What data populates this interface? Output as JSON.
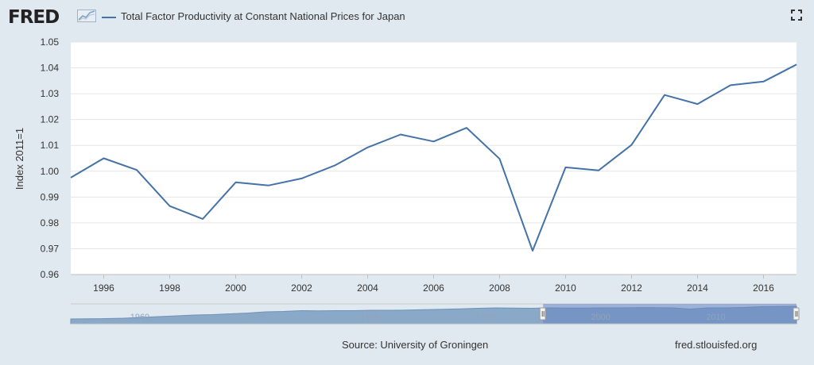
{
  "header": {
    "logo_text": "FRED",
    "legend_label": "Total Factor Productivity at Constant National Prices for Japan"
  },
  "colors": {
    "series": "#4572a7",
    "background": "#e1e9f0",
    "plot": "#ffffff"
  },
  "icons": {
    "fullscreen": "fullscreen-icon",
    "logo": "fred-graph-icon"
  },
  "chart_data": {
    "type": "line",
    "title": "Total Factor Productivity at Constant National Prices for Japan",
    "xlabel": "",
    "ylabel": "Index 2011=1",
    "xlim": [
      1995,
      2017
    ],
    "ylim": [
      0.96,
      1.05
    ],
    "yticks": [
      "0.96",
      "0.97",
      "0.98",
      "0.99",
      "1.00",
      "1.01",
      "1.02",
      "1.03",
      "1.04",
      "1.05"
    ],
    "xticks": [
      "1996",
      "1998",
      "2000",
      "2002",
      "2004",
      "2006",
      "2008",
      "2010",
      "2012",
      "2014",
      "2016"
    ],
    "grid": true,
    "series": [
      {
        "name": "Total Factor Productivity at Constant National Prices for Japan",
        "x": [
          1995,
          1996,
          1997,
          1998,
          1999,
          2000,
          2001,
          2002,
          2003,
          2004,
          2005,
          2006,
          2007,
          2008,
          2009,
          2010,
          2011,
          2012,
          2013,
          2014,
          2015,
          2016,
          2017
        ],
        "y": [
          0.9975,
          1.005,
          1.0005,
          0.9865,
          0.9815,
          0.9957,
          0.9945,
          0.9972,
          1.0022,
          1.0092,
          1.0142,
          1.0115,
          1.0168,
          1.0048,
          0.9692,
          1.0015,
          1.0003,
          1.0102,
          1.0295,
          1.026,
          1.0333,
          1.0347,
          1.0413
        ]
      }
    ],
    "navigator": {
      "tick_labels": [
        "1960",
        "1970",
        "1980",
        "1990",
        "2000",
        "2010"
      ],
      "range": [
        1954,
        2017
      ],
      "selected": [
        1995,
        2017
      ],
      "values": [
        0.72,
        0.725,
        0.73,
        0.74,
        0.76,
        0.78,
        0.8,
        0.82,
        0.83,
        0.85,
        0.87,
        0.9,
        0.91,
        0.93,
        0.925,
        0.93,
        0.93,
        0.94,
        0.94,
        0.945,
        0.955,
        0.965,
        0.975,
        0.99,
        1.0,
        0.995,
        0.99,
        1.0,
        0.995,
        0.995,
        1.0,
        1.0,
        1.005,
        1.005,
        1.0,
        0.97,
        1.0,
        1.0,
        1.01,
        1.03,
        1.035,
        1.04
      ]
    }
  },
  "footer": {
    "source": "Source: University of Groningen",
    "site": "fred.stlouisfed.org"
  }
}
